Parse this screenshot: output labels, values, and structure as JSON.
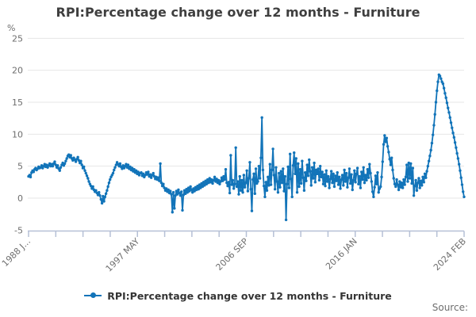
{
  "header": {
    "title": "RPI:Percentage change over 12 months - Furniture"
  },
  "legend": {
    "label": "RPI:Percentage change over 12 months - Furniture"
  },
  "footer": {
    "source_label": "Source:"
  },
  "colors": {
    "series": "#1274b9",
    "gridline": "#e6e6e6",
    "axis": "#b6c0d6",
    "tick_text": "#6e6e6e",
    "title_text": "#3f3f3f"
  },
  "y_axis": {
    "unit_label": "%",
    "tick_labels": [
      "25",
      "20",
      "15",
      "10",
      "5",
      "0",
      "-5"
    ],
    "min": -5,
    "max": 25
  },
  "x_axis": {
    "tick_count": 17,
    "labeled_tick_indices": [
      0,
      4,
      8,
      12,
      16
    ],
    "labels": [
      "1988 J...",
      "1997 MAY",
      "2006 SEP",
      "2016 JAN",
      "2024 FEB"
    ]
  },
  "chart_data": {
    "type": "line",
    "title": "RPI:Percentage change over 12 months - Furniture",
    "series_name": "RPI:Percentage change over 12 months - Furniture",
    "xlabel": "",
    "ylabel": "%",
    "ylim": [
      -5,
      25
    ],
    "grid": true,
    "legend_position": "bottom-center",
    "marker": "dot",
    "frequency": "monthly",
    "x_start": "1988 JAN",
    "x_end": "2024 FEB",
    "x_tick_labels": [
      "1988 J...",
      "1997 MAY",
      "2006 SEP",
      "2016 JAN",
      "2024 FEB"
    ],
    "values_note": "estimated monthly percent-change values read from plot, Jan 1988 to Feb 2024",
    "values": [
      3.4,
      3.6,
      3.3,
      4.0,
      4.3,
      4.1,
      4.5,
      4.7,
      4.4,
      4.6,
      4.9,
      4.7,
      4.8,
      5.1,
      4.7,
      5.0,
      5.3,
      4.9,
      5.2,
      4.8,
      5.1,
      5.4,
      5.0,
      5.3,
      5.0,
      5.4,
      5.7,
      5.2,
      4.8,
      5.1,
      4.6,
      4.3,
      4.8,
      5.2,
      5.5,
      5.1,
      5.4,
      5.8,
      6.2,
      6.6,
      6.8,
      6.4,
      6.7,
      6.2,
      5.9,
      6.3,
      6.0,
      5.7,
      6.1,
      6.4,
      5.9,
      5.5,
      5.8,
      5.2,
      4.7,
      4.9,
      4.3,
      3.9,
      3.5,
      3.1,
      2.6,
      2.2,
      1.9,
      1.5,
      1.8,
      1.3,
      1.0,
      1.2,
      0.8,
      0.5,
      0.9,
      0.4,
      -0.2,
      -0.8,
      0.3,
      -0.5,
      0.2,
      0.7,
      1.2,
      1.8,
      2.4,
      2.9,
      3.3,
      3.6,
      3.9,
      4.4,
      4.8,
      5.2,
      5.6,
      5.3,
      5.0,
      5.4,
      4.9,
      4.6,
      5.1,
      4.7,
      5.0,
      5.3,
      4.8,
      5.2,
      4.6,
      4.9,
      4.4,
      4.7,
      4.2,
      4.5,
      4.0,
      4.3,
      3.8,
      4.1,
      3.6,
      3.9,
      4.0,
      3.5,
      3.8,
      3.3,
      3.6,
      4.0,
      3.7,
      4.1,
      3.4,
      3.7,
      3.2,
      3.6,
      3.9,
      3.4,
      3.0,
      3.3,
      2.9,
      3.2,
      2.7,
      5.4,
      2.4,
      1.9,
      2.2,
      1.6,
      1.2,
      1.5,
      1.0,
      1.3,
      0.8,
      1.1,
      0.6,
      -2.2,
      0.9,
      -1.6,
      0.4,
      1.1,
      0.6,
      1.3,
      0.8,
      0.4,
      1.0,
      -1.9,
      0.5,
      1.2,
      0.7,
      1.4,
      0.9,
      1.6,
      1.1,
      1.8,
      1.3,
      0.9,
      1.5,
      1.1,
      1.7,
      1.3,
      1.9,
      1.4,
      2.1,
      1.6,
      2.3,
      1.8,
      2.5,
      2.0,
      2.7,
      2.2,
      2.9,
      2.4,
      3.1,
      2.5,
      2.9,
      2.3,
      2.8,
      3.3,
      2.6,
      3.0,
      2.4,
      2.8,
      2.2,
      2.6,
      3.2,
      2.7,
      3.4,
      2.9,
      4.5,
      2.4,
      1.9,
      2.5,
      0.8,
      6.7,
      2.1,
      2.8,
      1.5,
      2.2,
      7.9,
      1.8,
      2.6,
      0.6,
      3.4,
      1.2,
      2.8,
      0.9,
      3.6,
      1.7,
      2.4,
      4.3,
      1.1,
      3.1,
      5.6,
      1.4,
      -2.0,
      2.9,
      3.8,
      0.7,
      4.6,
      2.3,
      2.6,
      5.0,
      3.1,
      6.3,
      12.6,
      4.4,
      1.9,
      0.2,
      2.5,
      1.2,
      3.3,
      2.0,
      5.3,
      2.1,
      4.4,
      7.7,
      3.6,
      1.4,
      4.8,
      2.6,
      0.9,
      3.9,
      1.7,
      4.2,
      2.4,
      4.6,
      1.1,
      3.4,
      -3.4,
      2.2,
      4.9,
      1.6,
      6.9,
      3.0,
      0.2,
      5.1,
      7.1,
      3.8,
      6.2,
      0.9,
      5.4,
      1.8,
      4.5,
      2.3,
      5.8,
      3.2,
      1.2,
      4.0,
      2.7,
      5.2,
      3.5,
      6.0,
      4.2,
      2.0,
      4.8,
      3.1,
      5.5,
      2.5,
      4.4,
      3.8,
      4.6,
      2.8,
      5.0,
      3.3,
      4.1,
      2.2,
      3.7,
      1.9,
      4.3,
      2.6,
      3.4,
      1.6,
      3.0,
      4.2,
      2.4,
      3.8,
      1.8,
      3.5,
      2.7,
      4.0,
      2.1,
      3.3,
      1.5,
      2.9,
      3.6,
      2.0,
      4.4,
      2.6,
      3.9,
      1.7,
      3.2,
      4.6,
      2.3,
      3.7,
      1.3,
      2.8,
      4.3,
      2.5,
      3.8,
      4.7,
      2.2,
      3.4,
      1.6,
      4.1,
      2.9,
      4.8,
      2.4,
      3.6,
      2.8,
      4.5,
      3.2,
      5.3,
      3.9,
      2.6,
      1.0,
      0.2,
      1.7,
      3.5,
      2.2,
      4.0,
      0.9,
      1.5,
      1.8,
      3.3,
      5.7,
      8.4,
      9.8,
      8.8,
      9.4,
      8.1,
      7.2,
      6.1,
      5.2,
      6.3,
      4.4,
      3.1,
      2.2,
      1.8,
      2.9,
      2.1,
      1.3,
      2.6,
      1.7,
      2.4,
      1.6,
      2.9,
      2.1,
      3.3,
      5.2,
      2.6,
      5.5,
      3.1,
      5.4,
      2.3,
      4.7,
      0.4,
      1.9,
      2.8,
      1.2,
      2.4,
      3.1,
      1.6,
      2.7,
      2.0,
      3.3,
      2.5,
      3.8,
      3.2,
      4.2,
      5.0,
      5.8,
      6.6,
      7.5,
      8.6,
      9.9,
      11.4,
      13.1,
      15.0,
      16.8,
      18.2,
      19.3,
      19.1,
      18.7,
      18.2,
      17.9,
      17.2,
      16.4,
      15.7,
      14.9,
      14.1,
      13.4,
      12.6,
      11.8,
      11.0,
      10.2,
      9.5,
      8.7,
      7.9,
      7.0,
      6.2,
      5.3,
      4.3,
      3.2,
      2.1,
      1.0,
      0.2
    ]
  }
}
